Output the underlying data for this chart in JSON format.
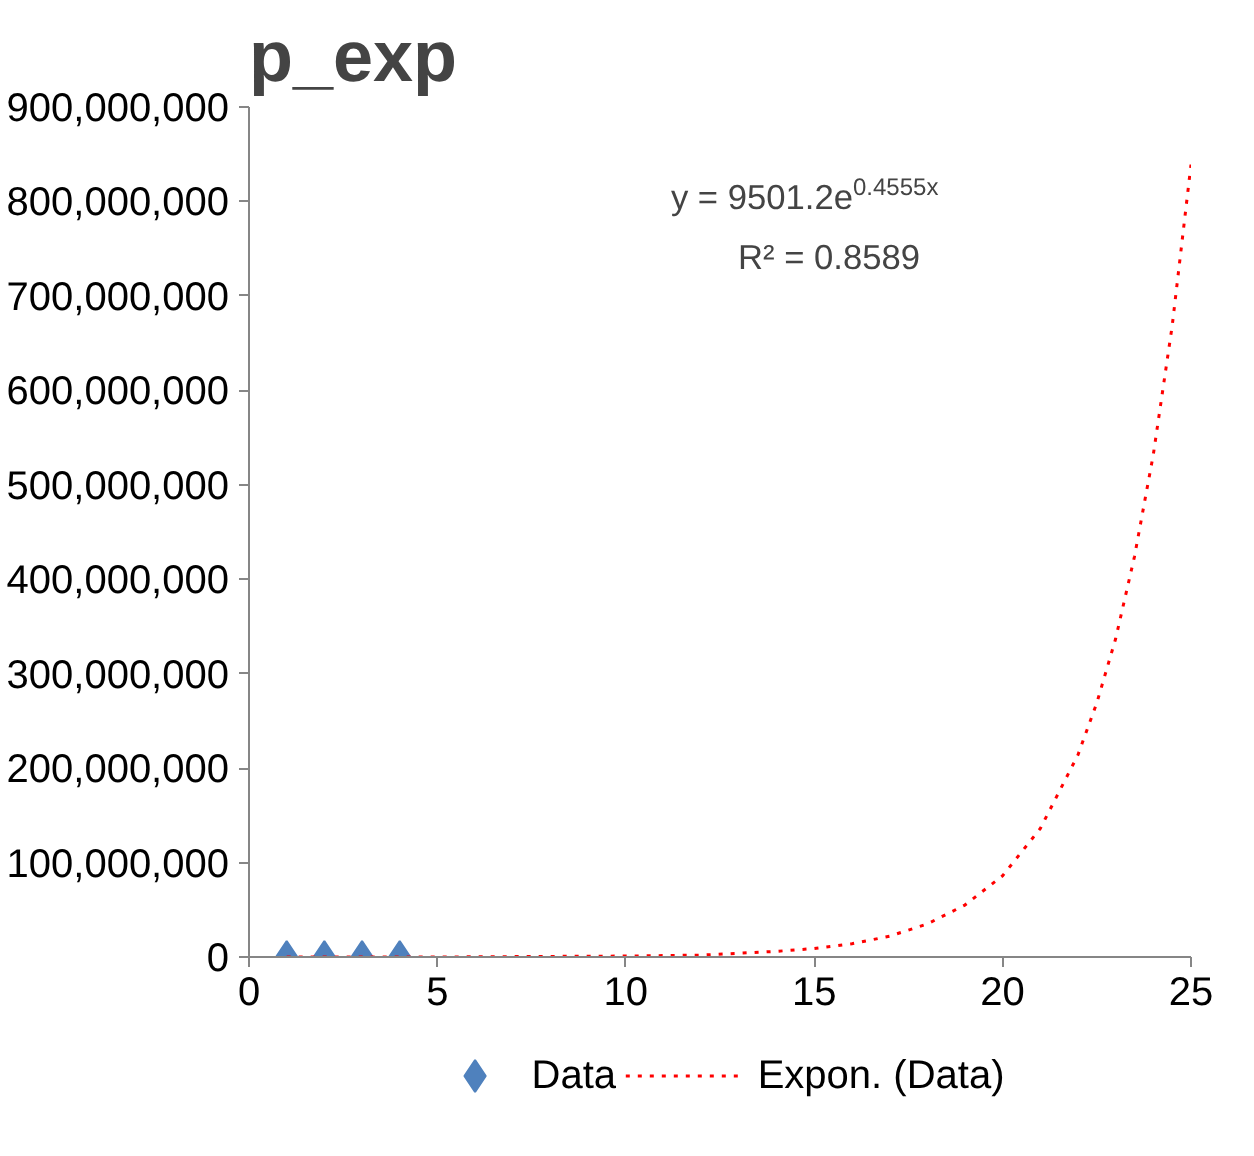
{
  "chart_data": {
    "type": "scatter",
    "title": "p_exp",
    "annotations": [
      "y = 9501.2e$^{0.4555x}$",
      "R² = 0.8589"
    ],
    "series": [
      {
        "name": "Data",
        "color": "#4f81bd",
        "marker": "diamond",
        "x": [
          1,
          2,
          3,
          4
        ],
        "values": [
          0,
          0,
          0,
          0
        ]
      },
      {
        "name": "Expon. (Data)",
        "type": "line",
        "color": "#ff0000",
        "line_style": "dotted",
        "x": [
          1,
          5,
          10,
          12,
          14,
          15,
          16,
          17,
          18,
          19,
          20,
          21,
          22,
          22.5,
          23,
          23.5,
          24,
          24.5,
          25
        ],
        "values": [
          0,
          0,
          1000000,
          2000000,
          6000000,
          9000000,
          14000000,
          22000000,
          35000000,
          55000000,
          86000000,
          136000000,
          214000000,
          269000000,
          337000000,
          424000000,
          532000000,
          668000000,
          839000000
        ]
      }
    ],
    "xlim": [
      0,
      25
    ],
    "xticks": [
      0,
      5,
      10,
      15,
      20,
      25
    ],
    "ylim": [
      0,
      900000000
    ],
    "yticks": [
      {
        "value": 0,
        "label": "0"
      },
      {
        "value": 100000000,
        "label": "100,000,000"
      },
      {
        "value": 200000000,
        "label": "200,000,000"
      },
      {
        "value": 300000000,
        "label": "300,000,000"
      },
      {
        "value": 400000000,
        "label": "400,000,000"
      },
      {
        "value": 500000000,
        "label": "500,000,000"
      },
      {
        "value": 600000000,
        "label": "600,000,000"
      },
      {
        "value": 700000000,
        "label": "700,000,000"
      },
      {
        "value": 800000000,
        "label": "800,000,000"
      },
      {
        "value": 900000000,
        "label": "900,000,000"
      }
    ],
    "grid": false,
    "legend": "bottom"
  }
}
